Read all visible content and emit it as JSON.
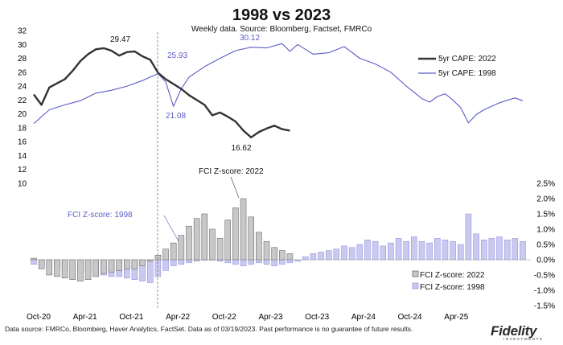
{
  "title": "1998 vs 2023",
  "subtitle": "Weekly data.  Source: Bloomberg, Factset, FMRCo",
  "footer": "Data source: FMRCo, Bloomberg, Haver Analytics, FactSet. Data as of 03/19/2023. Past performance is no guarantee of future results.",
  "logo": "Fidelity",
  "logo_sub": "INVESTMENTS",
  "colors": {
    "cape_2022": "#333333",
    "cape_1998": "#5B5BC8",
    "fci_2022_fill": "#c8c8c8",
    "fci_1998_fill": "#c9c9f2"
  },
  "chart_data": {
    "type": "line",
    "x_ticks": [
      "Oct-20",
      "Apr-21",
      "Oct-21",
      "Apr-22",
      "Oct-22",
      "Apr-23",
      "Oct-23",
      "Apr-24",
      "Oct-24",
      "Apr-25"
    ],
    "left_axis": {
      "ylim": [
        10,
        32
      ],
      "ticks": [
        "10",
        "12",
        "14",
        "16",
        "18",
        "20",
        "22",
        "24",
        "26",
        "28",
        "30",
        "32"
      ]
    },
    "right_axis": {
      "ylim": [
        -1.5,
        2.5
      ],
      "ticks": [
        "2.5%",
        "2.0%",
        "1.5%",
        "1.0%",
        "0.5%",
        "0.0%",
        "-0.5%",
        "-1.0%",
        "-1.5%"
      ]
    },
    "series": [
      {
        "name": "5yr CAPE: 2022",
        "type": "line",
        "points": [
          [
            0,
            22.8
          ],
          [
            1,
            21.3
          ],
          [
            2,
            23.8
          ],
          [
            3,
            24.4
          ],
          [
            4,
            25.0
          ],
          [
            5,
            26.2
          ],
          [
            6,
            27.6
          ],
          [
            7,
            28.6
          ],
          [
            8,
            29.3
          ],
          [
            9,
            29.47
          ],
          [
            10,
            29.1
          ],
          [
            11,
            28.4
          ],
          [
            12,
            28.9
          ],
          [
            13,
            29.0
          ],
          [
            14,
            28.3
          ],
          [
            15,
            27.8
          ],
          [
            16,
            25.93
          ],
          [
            17,
            25.0
          ],
          [
            18,
            24.3
          ],
          [
            19,
            23.6
          ],
          [
            20,
            22.7
          ],
          [
            21,
            22.0
          ],
          [
            22,
            21.3
          ],
          [
            23,
            19.8
          ],
          [
            24,
            20.2
          ],
          [
            25,
            19.6
          ],
          [
            26,
            18.9
          ],
          [
            27,
            17.6
          ],
          [
            28,
            16.62
          ],
          [
            29,
            17.4
          ],
          [
            30,
            17.9
          ],
          [
            31,
            18.3
          ],
          [
            32,
            17.8
          ],
          [
            33,
            17.6
          ]
        ]
      },
      {
        "name": "5yr CAPE: 1998",
        "type": "line",
        "points": [
          [
            0,
            18.6
          ],
          [
            2,
            20.6
          ],
          [
            4,
            21.3
          ],
          [
            6,
            21.9
          ],
          [
            8,
            23.0
          ],
          [
            10,
            23.4
          ],
          [
            12,
            24.0
          ],
          [
            14,
            24.8
          ],
          [
            16,
            25.8
          ],
          [
            17,
            24.6
          ],
          [
            18,
            21.08
          ],
          [
            19,
            23.6
          ],
          [
            20,
            25.3
          ],
          [
            22,
            26.8
          ],
          [
            24,
            28.0
          ],
          [
            26,
            29.1
          ],
          [
            28,
            29.6
          ],
          [
            30,
            29.5
          ],
          [
            32,
            30.12
          ],
          [
            33,
            29.0
          ],
          [
            34,
            30.0
          ],
          [
            36,
            28.6
          ],
          [
            38,
            28.8
          ],
          [
            40,
            29.7
          ],
          [
            42,
            28.0
          ],
          [
            44,
            27.2
          ],
          [
            46,
            26.0
          ],
          [
            48,
            24.0
          ],
          [
            50,
            22.2
          ],
          [
            51,
            21.7
          ],
          [
            52,
            22.5
          ],
          [
            53,
            22.9
          ],
          [
            54,
            22.0
          ],
          [
            55,
            20.9
          ],
          [
            56,
            18.7
          ],
          [
            57,
            19.9
          ],
          [
            58,
            20.6
          ],
          [
            60,
            21.6
          ],
          [
            62,
            22.3
          ],
          [
            63,
            21.9
          ]
        ]
      },
      {
        "name": "FCI Z-score: 2022",
        "type": "bar",
        "values": [
          0.05,
          -0.3,
          -0.5,
          -0.55,
          -0.6,
          -0.65,
          -0.7,
          -0.65,
          -0.55,
          -0.45,
          -0.4,
          -0.35,
          -0.3,
          -0.3,
          -0.2,
          -0.05,
          0.15,
          0.35,
          0.55,
          0.8,
          1.1,
          1.35,
          1.5,
          1.0,
          0.7,
          1.3,
          1.7,
          2.0,
          1.4,
          0.9,
          0.6,
          0.4,
          0.3,
          0.2
        ]
      },
      {
        "name": "FCI Z-score: 1998",
        "type": "bar",
        "values": [
          -0.15,
          -0.2,
          -0.25,
          -0.3,
          -0.35,
          -0.35,
          -0.35,
          -0.4,
          -0.45,
          -0.5,
          -0.55,
          -0.55,
          -0.6,
          -0.65,
          -0.7,
          -0.75,
          -0.55,
          -0.35,
          -0.2,
          -0.15,
          -0.1,
          -0.05,
          0.0,
          0.0,
          -0.05,
          -0.1,
          -0.15,
          -0.2,
          -0.15,
          -0.1,
          -0.15,
          -0.2,
          -0.15,
          -0.1,
          -0.05,
          0.1,
          0.2,
          0.25,
          0.3,
          0.35,
          0.45,
          0.4,
          0.5,
          0.65,
          0.6,
          0.45,
          0.55,
          0.7,
          0.6,
          0.75,
          0.6,
          0.55,
          0.7,
          0.65,
          0.6,
          0.5,
          1.5,
          0.85,
          0.65,
          0.7,
          0.75,
          0.65,
          0.7,
          0.6
        ]
      }
    ],
    "legend": [
      {
        "label": "5yr CAPE: 2022",
        "kind": "line",
        "color": "#333333"
      },
      {
        "label": "5yr CAPE: 1998",
        "kind": "line",
        "color": "#5B5BC8"
      },
      {
        "label": "FCI Z-score: 2022",
        "kind": "box",
        "color": "#c8c8c8",
        "stroke": "#444444"
      },
      {
        "label": "FCI Z-score: 1998",
        "kind": "box",
        "color": "#c9c9f2",
        "stroke": "#8888d8"
      }
    ],
    "annotations": [
      {
        "text": "29.47",
        "color": "#111111"
      },
      {
        "text": "25.93",
        "color": "#5B5BC8"
      },
      {
        "text": "30.12",
        "color": "#5B5BC8"
      },
      {
        "text": "21.08",
        "color": "#5B5BC8"
      },
      {
        "text": "16.62",
        "color": "#111111"
      },
      {
        "text": "FCI Z-score: 2022",
        "color": "#111111"
      },
      {
        "text": "FCI Z-score: 1998",
        "color": "#5B5BC8"
      }
    ]
  }
}
